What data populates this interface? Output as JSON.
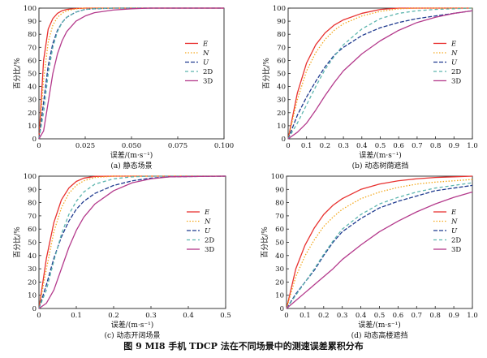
{
  "figure": {
    "caption": "图 9    MI8 手机 TDCP 法在不同场景中的测速误差累积分布",
    "legend_colors": {
      "E": "#e8312f",
      "N": "#f4a81d",
      "U": "#1f3a8f",
      "2D": "#5cb5ae",
      "3D": "#b43a8c"
    }
  },
  "chart_data": [
    {
      "id": "a",
      "type": "line",
      "title": "(a) 静态场景",
      "xlabel": "误差/(m·s⁻¹)",
      "ylabel": "百分比/%",
      "xlim": [
        0,
        0.1
      ],
      "ylim": [
        0,
        100
      ],
      "xticks": [
        0,
        0.025,
        0.05,
        0.075,
        0.1
      ],
      "xtick_labels": [
        "0",
        "0.025",
        "0.050",
        "0.075",
        "0.100"
      ],
      "yticks": [
        0,
        10,
        20,
        30,
        40,
        50,
        60,
        70,
        80,
        90,
        100
      ],
      "legend_position": "right-middle",
      "series": [
        {
          "name": "E",
          "x": [
            0,
            0.0025,
            0.005,
            0.0075,
            0.01,
            0.0125,
            0.015,
            0.02,
            0.025,
            0.03,
            0.04,
            0.05,
            0.1
          ],
          "y": [
            0,
            60,
            84,
            92,
            96,
            98,
            99,
            99.7,
            100,
            100,
            100,
            100,
            100
          ]
        },
        {
          "name": "N",
          "x": [
            0,
            0.0025,
            0.005,
            0.0075,
            0.01,
            0.0125,
            0.015,
            0.02,
            0.025,
            0.03,
            0.04,
            0.05,
            0.1
          ],
          "y": [
            0,
            45,
            74,
            87,
            93,
            96,
            98,
            99.5,
            100,
            100,
            100,
            100,
            100
          ]
        },
        {
          "name": "U",
          "x": [
            0,
            0.0025,
            0.005,
            0.0075,
            0.01,
            0.0125,
            0.015,
            0.02,
            0.025,
            0.03,
            0.04,
            0.05,
            0.1
          ],
          "y": [
            0,
            28,
            56,
            73,
            83,
            89,
            93,
            97,
            99,
            99.5,
            100,
            100,
            100
          ]
        },
        {
          "name": "2D",
          "x": [
            0,
            0.0025,
            0.005,
            0.0075,
            0.01,
            0.0125,
            0.015,
            0.02,
            0.025,
            0.03,
            0.04,
            0.05,
            0.1
          ],
          "y": [
            0,
            20,
            50,
            70,
            82,
            89,
            93,
            97,
            99,
            99.5,
            100,
            100,
            100
          ]
        },
        {
          "name": "3D",
          "x": [
            0,
            0.0025,
            0.005,
            0.0075,
            0.01,
            0.0125,
            0.015,
            0.02,
            0.025,
            0.03,
            0.04,
            0.05,
            0.06,
            0.1
          ],
          "y": [
            0,
            6,
            28,
            50,
            65,
            75,
            82,
            90,
            94,
            96.5,
            98.5,
            99.5,
            100,
            100
          ]
        }
      ]
    },
    {
      "id": "b",
      "type": "line",
      "title": "(b) 动态树荫遮挡",
      "xlabel": "误差/(m·s⁻¹)",
      "ylabel": "百分比/%",
      "xlim": [
        0,
        1
      ],
      "ylim": [
        0,
        100
      ],
      "xticks": [
        0,
        0.1,
        0.2,
        0.3,
        0.4,
        0.5,
        0.6,
        0.7,
        0.8,
        0.9,
        1
      ],
      "xtick_labels": [
        "0",
        "0.1",
        "0.2",
        "0.3",
        "0.4",
        "0.5",
        "0.6",
        "0.7",
        "0.8",
        "0.9",
        "1.0"
      ],
      "yticks": [
        0,
        10,
        20,
        30,
        40,
        50,
        60,
        70,
        80,
        90,
        100
      ],
      "legend_position": "right-middle",
      "series": [
        {
          "name": "E",
          "x": [
            0,
            0.05,
            0.1,
            0.15,
            0.2,
            0.25,
            0.3,
            0.4,
            0.5,
            0.6,
            0.7,
            1
          ],
          "y": [
            0,
            35,
            58,
            72,
            81,
            87,
            91,
            96,
            99,
            100,
            100,
            100
          ]
        },
        {
          "name": "N",
          "x": [
            0,
            0.05,
            0.1,
            0.15,
            0.2,
            0.25,
            0.3,
            0.4,
            0.5,
            0.6,
            0.7,
            1
          ],
          "y": [
            0,
            30,
            52,
            66,
            76,
            83,
            88,
            94,
            97.5,
            99.5,
            100,
            100
          ]
        },
        {
          "name": "U",
          "x": [
            0,
            0.05,
            0.1,
            0.15,
            0.2,
            0.25,
            0.3,
            0.4,
            0.5,
            0.6,
            0.7,
            0.8,
            0.9,
            1
          ],
          "y": [
            0,
            18,
            32,
            44,
            55,
            64,
            70,
            79,
            85,
            89,
            92,
            94,
            96,
            98
          ]
        },
        {
          "name": "2D",
          "x": [
            0,
            0.05,
            0.1,
            0.15,
            0.2,
            0.25,
            0.3,
            0.4,
            0.5,
            0.6,
            0.7,
            0.8,
            0.9,
            1
          ],
          "y": [
            0,
            12,
            26,
            40,
            53,
            63,
            72,
            84,
            92,
            96,
            98,
            99,
            99.5,
            100
          ]
        },
        {
          "name": "3D",
          "x": [
            0,
            0.05,
            0.1,
            0.15,
            0.2,
            0.25,
            0.3,
            0.4,
            0.5,
            0.6,
            0.7,
            0.8,
            0.9,
            1
          ],
          "y": [
            0,
            5,
            12,
            22,
            33,
            43,
            52,
            65,
            75,
            83,
            89,
            93,
            96,
            98
          ]
        }
      ]
    },
    {
      "id": "c",
      "type": "line",
      "title": "(c) 动态开阔场景",
      "xlabel": "误差/(m·s⁻¹)",
      "ylabel": "百分比/%",
      "xlim": [
        0,
        0.5
      ],
      "ylim": [
        0,
        100
      ],
      "xticks": [
        0,
        0.1,
        0.2,
        0.3,
        0.4,
        0.5
      ],
      "xtick_labels": [
        "0",
        "0.1",
        "0.2",
        "0.3",
        "0.4",
        "0.5"
      ],
      "yticks": [
        0,
        10,
        20,
        30,
        40,
        50,
        60,
        70,
        80,
        90,
        100
      ],
      "legend_position": "right-middle",
      "series": [
        {
          "name": "E",
          "x": [
            0,
            0.02,
            0.04,
            0.06,
            0.08,
            0.1,
            0.12,
            0.15,
            0.2,
            0.5
          ],
          "y": [
            0,
            38,
            65,
            82,
            91,
            96,
            98.5,
            99.8,
            100,
            100
          ]
        },
        {
          "name": "N",
          "x": [
            0,
            0.02,
            0.04,
            0.06,
            0.08,
            0.1,
            0.12,
            0.15,
            0.2,
            0.5
          ],
          "y": [
            0,
            30,
            58,
            76,
            87,
            93,
            96.5,
            99,
            100,
            100
          ]
        },
        {
          "name": "U",
          "x": [
            0,
            0.02,
            0.04,
            0.06,
            0.08,
            0.1,
            0.12,
            0.15,
            0.2,
            0.25,
            0.3,
            0.35,
            0.5
          ],
          "y": [
            0,
            18,
            38,
            54,
            66,
            75,
            81,
            87,
            93,
            96.5,
            98.5,
            99.5,
            100
          ]
        },
        {
          "name": "2D",
          "x": [
            0,
            0.02,
            0.04,
            0.06,
            0.08,
            0.1,
            0.12,
            0.15,
            0.2,
            0.25,
            0.3,
            0.5
          ],
          "y": [
            0,
            14,
            36,
            56,
            71,
            81,
            88,
            94,
            98,
            99.5,
            100,
            100
          ]
        },
        {
          "name": "3D",
          "x": [
            0,
            0.02,
            0.04,
            0.06,
            0.08,
            0.1,
            0.12,
            0.15,
            0.2,
            0.25,
            0.3,
            0.35,
            0.5
          ],
          "y": [
            0,
            4,
            14,
            30,
            46,
            59,
            69,
            79,
            89,
            95,
            98,
            99.5,
            100
          ]
        }
      ]
    },
    {
      "id": "d",
      "type": "line",
      "title": "(d) 动态高楼遮挡",
      "xlabel": "误差/(m·s⁻¹)",
      "ylabel": "百分比/%",
      "xlim": [
        0,
        1
      ],
      "ylim": [
        0,
        100
      ],
      "xticks": [
        0,
        0.1,
        0.2,
        0.3,
        0.4,
        0.5,
        0.6,
        0.7,
        0.8,
        0.9,
        1
      ],
      "xtick_labels": [
        "0",
        "0.1",
        "0.2",
        "0.3",
        "0.4",
        "0.5",
        "0.6",
        "0.7",
        "0.8",
        "0.9",
        "1.0"
      ],
      "yticks": [
        0,
        10,
        20,
        30,
        40,
        50,
        60,
        70,
        80,
        90,
        100
      ],
      "legend_position": "right-middle",
      "series": [
        {
          "name": "E",
          "x": [
            0,
            0.05,
            0.1,
            0.15,
            0.2,
            0.25,
            0.3,
            0.4,
            0.5,
            0.6,
            0.7,
            0.8,
            0.9,
            1
          ],
          "y": [
            0,
            30,
            48,
            61,
            71,
            78,
            83,
            90,
            94,
            96.5,
            98,
            99,
            99.5,
            100
          ]
        },
        {
          "name": "N",
          "x": [
            0,
            0.05,
            0.1,
            0.15,
            0.2,
            0.25,
            0.3,
            0.4,
            0.5,
            0.6,
            0.7,
            0.8,
            0.9,
            1
          ],
          "y": [
            0,
            24,
            40,
            52,
            62,
            69,
            75,
            83,
            88,
            91.5,
            94,
            95.5,
            96.5,
            97.5
          ]
        },
        {
          "name": "U",
          "x": [
            0,
            0.05,
            0.1,
            0.15,
            0.2,
            0.25,
            0.3,
            0.4,
            0.5,
            0.6,
            0.7,
            0.8,
            0.9,
            1
          ],
          "y": [
            0,
            11,
            20,
            29,
            40,
            50,
            58,
            68,
            76,
            81,
            85,
            89,
            91,
            93
          ]
        },
        {
          "name": "2D",
          "x": [
            0,
            0.05,
            0.1,
            0.15,
            0.2,
            0.25,
            0.3,
            0.4,
            0.5,
            0.6,
            0.7,
            0.8,
            0.9,
            1
          ],
          "y": [
            0,
            10,
            20,
            30,
            41,
            51,
            60,
            71,
            79,
            84,
            88,
            91,
            93,
            95
          ]
        },
        {
          "name": "3D",
          "x": [
            0,
            0.05,
            0.1,
            0.15,
            0.2,
            0.25,
            0.3,
            0.4,
            0.5,
            0.6,
            0.7,
            0.8,
            0.9,
            1
          ],
          "y": [
            0,
            6,
            12,
            18,
            24,
            30,
            37,
            48,
            58,
            66,
            73,
            79,
            84,
            88
          ]
        }
      ]
    }
  ]
}
